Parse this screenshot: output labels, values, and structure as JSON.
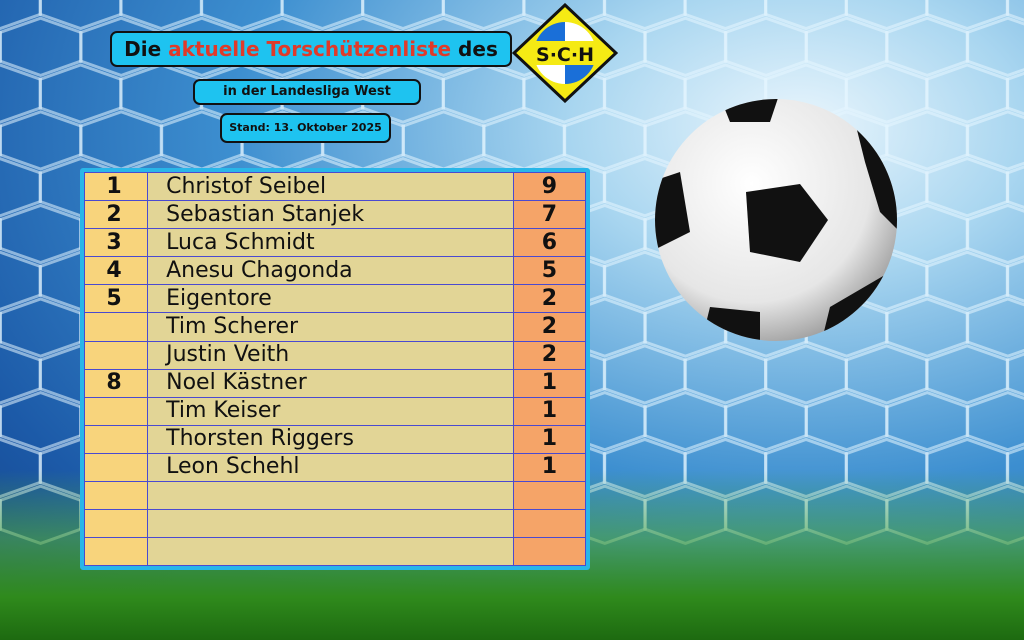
{
  "header": {
    "title_prefix": "Die ",
    "title_highlight": "aktuelle Torschützenliste",
    "title_suffix": " des",
    "league": "in der Landesliga West",
    "date": "Stand: 13. Oktober 2025"
  },
  "logo": {
    "text": "S·C·H",
    "colors": {
      "yellow": "#f5ea14",
      "blue": "#1a6fd8"
    }
  },
  "colors": {
    "rank_bg": "#f8d47c",
    "name_bg": "#e2d596",
    "goals_bg": "#f5a468",
    "frame": "#29b6e8",
    "highlight": "#e03a2a"
  },
  "scorers": [
    {
      "rank": "1",
      "name": "Christof Seibel",
      "goals": "9"
    },
    {
      "rank": "2",
      "name": "Sebastian Stanjek",
      "goals": "7"
    },
    {
      "rank": "3",
      "name": "Luca Schmidt",
      "goals": "6"
    },
    {
      "rank": "4",
      "name": "Anesu Chagonda",
      "goals": "5"
    },
    {
      "rank": "5",
      "name": "Eigentore",
      "goals": "2"
    },
    {
      "rank": "",
      "name": "Tim Scherer",
      "goals": "2"
    },
    {
      "rank": "",
      "name": "Justin Veith",
      "goals": "2"
    },
    {
      "rank": "8",
      "name": "Noel Kästner",
      "goals": "1"
    },
    {
      "rank": "",
      "name": "Tim Keiser",
      "goals": "1"
    },
    {
      "rank": "",
      "name": "Thorsten Riggers",
      "goals": "1"
    },
    {
      "rank": "",
      "name": "Leon Schehl",
      "goals": "1"
    },
    {
      "rank": "",
      "name": "",
      "goals": ""
    },
    {
      "rank": "",
      "name": "",
      "goals": ""
    },
    {
      "rank": "",
      "name": "",
      "goals": ""
    }
  ]
}
